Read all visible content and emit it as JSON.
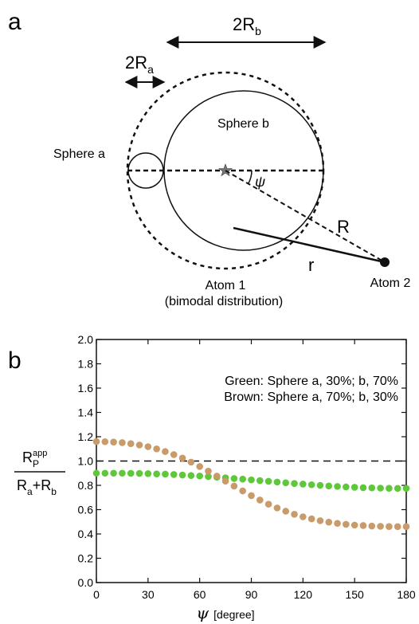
{
  "panel_a": {
    "label": "a",
    "two_rb_main": "2R",
    "two_rb_sub": "b",
    "two_ra_main": "2R",
    "two_ra_sub": "a",
    "sphere_a": "Sphere a",
    "sphere_b": "Sphere b",
    "psi": "ψ",
    "big_r": "R",
    "small_r": "r",
    "atom1_line1": "Atom 1",
    "atom1_line2": "(bimodal distribution)",
    "atom2": "Atom 2"
  },
  "panel_b": {
    "label": "b",
    "ylabel_num_main": "R",
    "ylabel_num_sub": "P",
    "ylabel_num_sup": "app",
    "ylabel_den_a": "R",
    "ylabel_den_a_sub": "a",
    "ylabel_den_plus": "+R",
    "ylabel_den_b_sub": "b",
    "xlabel_symbol": "ψ",
    "xlabel_unit": "[degree]",
    "legend_green": "Green: Sphere a, 30%; b, 70%",
    "legend_brown": "Brown: Sphere a, 70%; b, 30%"
  },
  "colors": {
    "green": "#5ec83a",
    "brown": "#c99a6a"
  },
  "chart_data": {
    "type": "scatter",
    "xlim": [
      0,
      180
    ],
    "ylim": [
      0,
      2.0
    ],
    "x_ticks": [
      0,
      30,
      60,
      90,
      120,
      150,
      180
    ],
    "y_ticks": [
      0.0,
      0.2,
      0.4,
      0.6,
      0.8,
      1.0,
      1.2,
      1.4,
      1.6,
      1.8,
      2.0
    ],
    "x_tick_labels": [
      "0",
      "30",
      "60",
      "90",
      "120",
      "150",
      "180"
    ],
    "y_tick_labels": [
      "0.0",
      "0.2",
      "0.4",
      "0.6",
      "0.8",
      "1.0",
      "1.2",
      "1.4",
      "1.6",
      "1.8",
      "2.0"
    ],
    "reference_line": 1.0,
    "x": [
      0,
      5,
      10,
      15,
      20,
      25,
      30,
      35,
      40,
      45,
      50,
      55,
      60,
      65,
      70,
      75,
      80,
      85,
      90,
      95,
      100,
      105,
      110,
      115,
      120,
      125,
      130,
      135,
      140,
      145,
      150,
      155,
      160,
      165,
      170,
      175,
      180
    ],
    "series": [
      {
        "color": "green",
        "values": [
          0.9,
          0.9,
          0.9,
          0.9,
          0.899,
          0.898,
          0.896,
          0.894,
          0.892,
          0.889,
          0.885,
          0.881,
          0.877,
          0.872,
          0.867,
          0.862,
          0.856,
          0.851,
          0.845,
          0.839,
          0.833,
          0.827,
          0.821,
          0.815,
          0.81,
          0.805,
          0.8,
          0.795,
          0.791,
          0.787,
          0.784,
          0.781,
          0.779,
          0.777,
          0.776,
          0.775,
          0.775
        ]
      },
      {
        "color": "brown",
        "values": [
          1.16,
          1.159,
          1.156,
          1.151,
          1.143,
          1.132,
          1.118,
          1.1,
          1.078,
          1.053,
          1.024,
          0.991,
          0.955,
          0.917,
          0.876,
          0.835,
          0.794,
          0.754,
          0.715,
          0.679,
          0.645,
          0.614,
          0.587,
          0.562,
          0.541,
          0.524,
          0.509,
          0.497,
          0.487,
          0.479,
          0.473,
          0.469,
          0.465,
          0.463,
          0.461,
          0.46,
          0.46
        ]
      }
    ]
  }
}
